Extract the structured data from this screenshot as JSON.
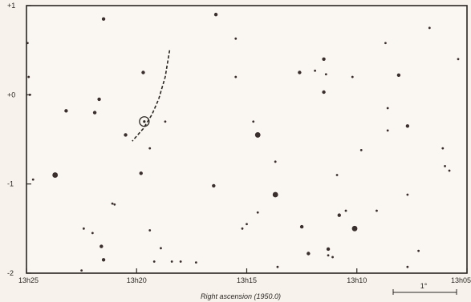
{
  "chart_data": {
    "type": "scatter",
    "xlabel": "Right ascension (1950.0)",
    "x_axis_reversed": true,
    "xlim": [
      "13h25",
      "13h05"
    ],
    "ylim": [
      -2,
      1
    ],
    "x_ticks": [
      {
        "label": "13h25",
        "value_min": 0
      },
      {
        "label": "13h20",
        "value_min": 5
      },
      {
        "label": "13h15",
        "value_min": 10
      },
      {
        "label": "13h10",
        "value_min": 15
      },
      {
        "label": "13h05",
        "value_min": 20
      }
    ],
    "y_ticks": [
      {
        "label": "+1",
        "value": 1
      },
      {
        "label": "+0",
        "value": 0
      },
      {
        "label": "-1",
        "value": -1
      },
      {
        "label": "-2",
        "value": -2
      }
    ],
    "scale_bar_label": "1°",
    "stars": [
      {
        "ra": 0.05,
        "dec": 0.58,
        "mag": 1
      },
      {
        "ra": 0.1,
        "dec": 0.2,
        "mag": 1
      },
      {
        "ra": 0.15,
        "dec": 0.0,
        "mag": 1
      },
      {
        "ra": 0.3,
        "dec": -0.95,
        "mag": 1
      },
      {
        "ra": 1.3,
        "dec": -0.9,
        "mag": 3
      },
      {
        "ra": 1.8,
        "dec": -0.18,
        "mag": 2
      },
      {
        "ra": 2.6,
        "dec": -1.5,
        "mag": 1
      },
      {
        "ra": 2.5,
        "dec": -1.97,
        "mag": 1
      },
      {
        "ra": 3.0,
        "dec": -1.55,
        "mag": 1
      },
      {
        "ra": 3.1,
        "dec": -0.2,
        "mag": 2
      },
      {
        "ra": 3.5,
        "dec": 0.85,
        "mag": 2
      },
      {
        "ra": 3.3,
        "dec": -0.05,
        "mag": 2
      },
      {
        "ra": 3.4,
        "dec": -1.7,
        "mag": 2
      },
      {
        "ra": 3.5,
        "dec": -1.85,
        "mag": 2
      },
      {
        "ra": 3.9,
        "dec": -1.22,
        "mag": 1
      },
      {
        "ra": 4.0,
        "dec": -1.23,
        "mag": 1
      },
      {
        "ra": 4.5,
        "dec": -0.45,
        "mag": 2
      },
      {
        "ra": 5.2,
        "dec": -0.88,
        "mag": 2
      },
      {
        "ra": 5.3,
        "dec": 0.25,
        "mag": 2
      },
      {
        "ra": 5.6,
        "dec": -0.6,
        "mag": 1
      },
      {
        "ra": 5.6,
        "dec": -1.52,
        "mag": 1
      },
      {
        "ra": 5.8,
        "dec": -1.87,
        "mag": 1
      },
      {
        "ra": 6.1,
        "dec": -1.72,
        "mag": 1
      },
      {
        "ra": 6.3,
        "dec": -0.3,
        "mag": 1
      },
      {
        "ra": 6.6,
        "dec": -1.87,
        "mag": 1
      },
      {
        "ra": 7.0,
        "dec": -1.87,
        "mag": 1
      },
      {
        "ra": 7.7,
        "dec": -1.88,
        "mag": 1
      },
      {
        "ra": 8.6,
        "dec": 0.9,
        "mag": 2
      },
      {
        "ra": 8.5,
        "dec": -1.02,
        "mag": 2
      },
      {
        "ra": 9.5,
        "dec": 0.63,
        "mag": 1
      },
      {
        "ra": 9.5,
        "dec": 0.2,
        "mag": 1
      },
      {
        "ra": 9.8,
        "dec": -1.5,
        "mag": 1
      },
      {
        "ra": 10.0,
        "dec": -1.45,
        "mag": 1
      },
      {
        "ra": 10.3,
        "dec": -0.3,
        "mag": 1
      },
      {
        "ra": 10.5,
        "dec": -0.45,
        "mag": 3
      },
      {
        "ra": 10.5,
        "dec": -1.32,
        "mag": 1
      },
      {
        "ra": 11.3,
        "dec": -0.75,
        "mag": 1
      },
      {
        "ra": 11.3,
        "dec": -1.12,
        "mag": 3
      },
      {
        "ra": 11.4,
        "dec": -1.93,
        "mag": 1
      },
      {
        "ra": 12.4,
        "dec": 0.25,
        "mag": 2
      },
      {
        "ra": 12.5,
        "dec": -1.48,
        "mag": 2
      },
      {
        "ra": 12.8,
        "dec": -1.78,
        "mag": 2
      },
      {
        "ra": 13.1,
        "dec": 0.27,
        "mag": 1
      },
      {
        "ra": 13.5,
        "dec": 0.4,
        "mag": 2
      },
      {
        "ra": 13.5,
        "dec": 0.03,
        "mag": 2
      },
      {
        "ra": 13.6,
        "dec": 0.23,
        "mag": 1
      },
      {
        "ra": 13.7,
        "dec": -1.73,
        "mag": 2
      },
      {
        "ra": 13.7,
        "dec": -1.8,
        "mag": 1
      },
      {
        "ra": 13.9,
        "dec": -1.82,
        "mag": 1
      },
      {
        "ra": 14.1,
        "dec": -0.9,
        "mag": 1
      },
      {
        "ra": 14.2,
        "dec": -1.35,
        "mag": 2
      },
      {
        "ra": 14.5,
        "dec": -1.3,
        "mag": 1
      },
      {
        "ra": 14.8,
        "dec": 0.2,
        "mag": 1
      },
      {
        "ra": 15.2,
        "dec": -0.62,
        "mag": 1
      },
      {
        "ra": 14.9,
        "dec": -1.5,
        "mag": 3
      },
      {
        "ra": 15.9,
        "dec": -1.3,
        "mag": 1
      },
      {
        "ra": 16.3,
        "dec": 0.58,
        "mag": 1
      },
      {
        "ra": 16.4,
        "dec": -0.15,
        "mag": 1
      },
      {
        "ra": 16.4,
        "dec": -0.4,
        "mag": 1
      },
      {
        "ra": 16.9,
        "dec": 0.22,
        "mag": 2
      },
      {
        "ra": 17.3,
        "dec": -0.35,
        "mag": 2
      },
      {
        "ra": 17.3,
        "dec": -1.12,
        "mag": 1
      },
      {
        "ra": 17.3,
        "dec": -1.93,
        "mag": 1
      },
      {
        "ra": 17.8,
        "dec": -1.75,
        "mag": 1
      },
      {
        "ra": 18.3,
        "dec": 0.75,
        "mag": 1
      },
      {
        "ra": 18.9,
        "dec": -0.6,
        "mag": 1
      },
      {
        "ra": 19.0,
        "dec": -0.8,
        "mag": 1
      },
      {
        "ra": 19.2,
        "dec": -0.85,
        "mag": 1
      },
      {
        "ra": 19.6,
        "dec": 0.4,
        "mag": 1
      }
    ],
    "track": [
      {
        "ra": 6.5,
        "dec": 0.5
      },
      {
        "ra": 6.3,
        "dec": 0.2
      },
      {
        "ra": 6.0,
        "dec": -0.05
      },
      {
        "ra": 5.7,
        "dec": -0.22
      },
      {
        "ra": 5.3,
        "dec": -0.38
      },
      {
        "ra": 4.8,
        "dec": -0.52
      }
    ],
    "target": {
      "ra": 5.35,
      "dec": -0.3
    }
  }
}
